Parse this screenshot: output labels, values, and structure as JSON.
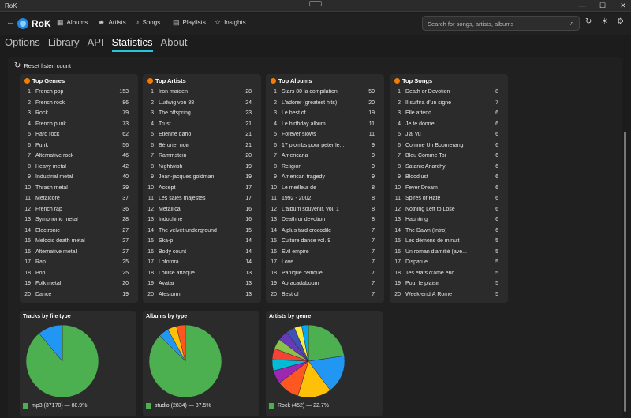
{
  "window": {
    "title": "RoK",
    "minimize": "—",
    "maximize": "☐",
    "close": "✕"
  },
  "nav": {
    "back": "←",
    "logo": "RoK",
    "items": [
      {
        "label": "Albums",
        "icon": "album-icon",
        "glyph": "▦"
      },
      {
        "label": "Artists",
        "icon": "artists-icon",
        "glyph": "☻"
      },
      {
        "label": "Songs",
        "icon": "music-note-icon",
        "glyph": "♪"
      },
      {
        "label": "Playlists",
        "icon": "playlist-icon",
        "glyph": "▤"
      },
      {
        "label": "Insights",
        "icon": "star-icon",
        "glyph": "☆"
      }
    ],
    "search_placeholder": "Search for songs, artists, albums",
    "search_glyph": "⌕",
    "refresh_glyph": "↻",
    "theme_glyph": "☀",
    "settings_glyph": "⚙"
  },
  "tabs": [
    {
      "label": "Options",
      "active": false
    },
    {
      "label": "Library",
      "active": false
    },
    {
      "label": "API",
      "active": false
    },
    {
      "label": "Statistics",
      "active": true
    },
    {
      "label": "About",
      "active": false
    }
  ],
  "reset": {
    "label": "Reset listen count",
    "glyph": "↻"
  },
  "top_lists": [
    {
      "title": "Top Genres",
      "rows": [
        [
          "1",
          "French pop",
          "153"
        ],
        [
          "2",
          "French rock",
          "86"
        ],
        [
          "3",
          "Rock",
          "79"
        ],
        [
          "4",
          "French punk",
          "73"
        ],
        [
          "5",
          "Hard rock",
          "62"
        ],
        [
          "6",
          "Punk",
          "56"
        ],
        [
          "7",
          "Alternative rock",
          "46"
        ],
        [
          "8",
          "Heavy metal",
          "42"
        ],
        [
          "9",
          "Industrial metal",
          "40"
        ],
        [
          "10",
          "Thrash metal",
          "39"
        ],
        [
          "11",
          "Metalcore",
          "37"
        ],
        [
          "12",
          "French rap",
          "36"
        ],
        [
          "13",
          "Symphonic metal",
          "28"
        ],
        [
          "14",
          "Electronic",
          "27"
        ],
        [
          "15",
          "Melodic death metal",
          "27"
        ],
        [
          "16",
          "Alternative metal",
          "27"
        ],
        [
          "17",
          "Rap",
          "25"
        ],
        [
          "18",
          "Pop",
          "25"
        ],
        [
          "19",
          "Folk metal",
          "20"
        ],
        [
          "20",
          "Dance",
          "19"
        ]
      ]
    },
    {
      "title": "Top Artists",
      "rows": [
        [
          "1",
          "Iron maiden",
          "28"
        ],
        [
          "2",
          "Ludwig von 88",
          "24"
        ],
        [
          "3",
          "The offspring",
          "23"
        ],
        [
          "4",
          "Trust",
          "21"
        ],
        [
          "5",
          "Etienne daho",
          "21"
        ],
        [
          "6",
          "Bérurier noir",
          "21"
        ],
        [
          "7",
          "Rammstein",
          "20"
        ],
        [
          "8",
          "Nightwish",
          "19"
        ],
        [
          "9",
          "Jean-jacques goldman",
          "19"
        ],
        [
          "10",
          "Accept",
          "17"
        ],
        [
          "11",
          "Les sales majestés",
          "17"
        ],
        [
          "12",
          "Metallica",
          "16"
        ],
        [
          "13",
          "Indochine",
          "16"
        ],
        [
          "14",
          "The velvet underground",
          "15"
        ],
        [
          "15",
          "Ska-p",
          "14"
        ],
        [
          "16",
          "Body count",
          "14"
        ],
        [
          "17",
          "Lofofora",
          "14"
        ],
        [
          "18",
          "Louise attaque",
          "13"
        ],
        [
          "19",
          "Avatar",
          "13"
        ],
        [
          "20",
          "Alestorm",
          "13"
        ]
      ]
    },
    {
      "title": "Top Albums",
      "rows": [
        [
          "1",
          "Stars 80 la compilation",
          "50"
        ],
        [
          "2",
          "L'adorer (greatest hits)",
          "20"
        ],
        [
          "3",
          "Le best of",
          "19"
        ],
        [
          "4",
          "Le birthday album",
          "11"
        ],
        [
          "5",
          "Forever slows",
          "11"
        ],
        [
          "6",
          "17 plombs pour peter le...",
          "9"
        ],
        [
          "7",
          "Americana",
          "9"
        ],
        [
          "8",
          "Religion",
          "9"
        ],
        [
          "9",
          "American tragedy",
          "9"
        ],
        [
          "10",
          "Le meilleur de",
          "8"
        ],
        [
          "11",
          "1992 - 2002",
          "8"
        ],
        [
          "12",
          "L'album souvenir, vol. 1",
          "8"
        ],
        [
          "13",
          "Death or devotion",
          "8"
        ],
        [
          "14",
          "A plus tard crocodile",
          "7"
        ],
        [
          "15",
          "Culture dance vol. 9",
          "7"
        ],
        [
          "16",
          "Evil empire",
          "7"
        ],
        [
          "17",
          "Love",
          "7"
        ],
        [
          "18",
          "Panique celtique",
          "7"
        ],
        [
          "19",
          "Abracadaboum",
          "7"
        ],
        [
          "20",
          "Best of",
          "7"
        ]
      ]
    },
    {
      "title": "Top Songs",
      "rows": [
        [
          "1",
          "Death or Devotion",
          "8"
        ],
        [
          "2",
          "Il suffira d'un signe",
          "7"
        ],
        [
          "3",
          "Elle attend",
          "6"
        ],
        [
          "4",
          "Je te donne",
          "6"
        ],
        [
          "5",
          "J'ai vu",
          "6"
        ],
        [
          "6",
          "Comme Un Boomerang",
          "6"
        ],
        [
          "7",
          "Bleu Comme Toi",
          "6"
        ],
        [
          "8",
          "Satanic Anarchy",
          "6"
        ],
        [
          "9",
          "Bloodlust",
          "6"
        ],
        [
          "10",
          "Fever Dream",
          "6"
        ],
        [
          "11",
          "Spires of Hate",
          "6"
        ],
        [
          "12",
          "Nothing Left to Lose",
          "6"
        ],
        [
          "13",
          "Haunting",
          "6"
        ],
        [
          "14",
          "The Dawn (Intro)",
          "6"
        ],
        [
          "15",
          "Les démons de minuit",
          "5"
        ],
        [
          "16",
          "Un roman d'amitié (ave...",
          "5"
        ],
        [
          "17",
          "Disparue",
          "5"
        ],
        [
          "18",
          "Tes états d'âme eric",
          "5"
        ],
        [
          "19",
          "Pour le plaisir",
          "5"
        ],
        [
          "20",
          "Week-end À Rome",
          "5"
        ]
      ]
    }
  ],
  "charts": [
    {
      "title": "Tracks by file type",
      "legend": "mp3 (37170) — 88.9%",
      "legend_color": "#4caf50",
      "slices": [
        {
          "value": 88.9,
          "color": "#4caf50"
        },
        {
          "value": 11.1,
          "color": "#2196f3"
        }
      ]
    },
    {
      "title": "Albums by type",
      "legend": "studio (2834) — 87.5%",
      "legend_color": "#4caf50",
      "slices": [
        {
          "value": 87.5,
          "color": "#4caf50"
        },
        {
          "value": 4.5,
          "color": "#2196f3"
        },
        {
          "value": 4.0,
          "color": "#ffc107"
        },
        {
          "value": 4.0,
          "color": "#ff5722"
        }
      ]
    },
    {
      "title": "Artists by genre",
      "legend": "Rock (452) — 22.7%",
      "legend_color": "#4caf50",
      "slices": [
        {
          "value": 22.7,
          "color": "#4caf50"
        },
        {
          "value": 17.0,
          "color": "#2196f3"
        },
        {
          "value": 15.0,
          "color": "#ffc107"
        },
        {
          "value": 10.0,
          "color": "#ff5722"
        },
        {
          "value": 6.0,
          "color": "#9c27b0"
        },
        {
          "value": 5.0,
          "color": "#00bcd4"
        },
        {
          "value": 5.0,
          "color": "#f44336"
        },
        {
          "value": 4.5,
          "color": "#8bc34a"
        },
        {
          "value": 4.5,
          "color": "#673ab7"
        },
        {
          "value": 4.0,
          "color": "#3f51b5"
        },
        {
          "value": 3.3,
          "color": "#ffeb3b"
        },
        {
          "value": 3.0,
          "color": "#03a9f4"
        }
      ]
    }
  ]
}
